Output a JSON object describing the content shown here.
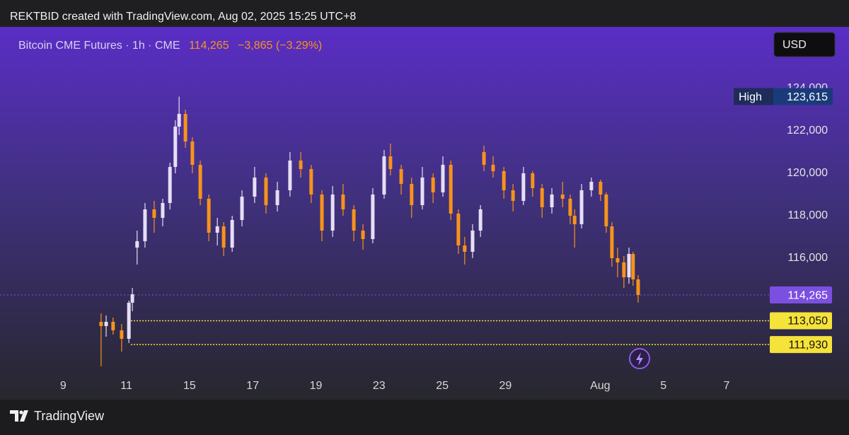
{
  "header": "REKTBID created with TradingView.com, Aug 02, 2025 15:25 UTC+8",
  "currency_button": "USD",
  "brand": "TradingView",
  "chart_data": {
    "type": "candlestick",
    "symbol_label": "Bitcoin CME Futures · 1h · CME",
    "last_label": "114,265",
    "change_label": "−3,865 (−3.29%)",
    "up_color": "#e6def5",
    "down_color": "#f7931a",
    "x": [
      1.2,
      1.36,
      1.58,
      1.85,
      2.08,
      2.19,
      2.34,
      2.59,
      2.88,
      3.15,
      3.38,
      3.55,
      3.67,
      3.87,
      4.09,
      4.34,
      4.61,
      4.88,
      5.08,
      5.35,
      5.66,
      6.06,
      6.42,
      6.78,
      7.18,
      7.52,
      7.85,
      8.19,
      8.53,
      8.86,
      9.2,
      9.49,
      9.8,
      10.16,
      10.36,
      10.7,
      11.03,
      11.37,
      11.71,
      12.02,
      12.27,
      12.51,
      12.71,
      12.96,
      13.21,
      13.32,
      13.61,
      13.95,
      14.24,
      14.57,
      14.86,
      15.16,
      15.47,
      15.81,
      16.05,
      16.19,
      16.41,
      16.72,
      17.01,
      17.19,
      17.37,
      17.55,
      17.75,
      17.91,
      18.04,
      18.2
    ],
    "open": [
      113000,
      112800,
      113000,
      112600,
      112200,
      113900,
      116500,
      116800,
      118300,
      117900,
      118600,
      120300,
      122200,
      122800,
      121500,
      120400,
      118800,
      117200,
      117500,
      116500,
      117800,
      118900,
      119800,
      118500,
      119200,
      120600,
      120200,
      119000,
      117300,
      119000,
      118300,
      117300,
      116900,
      119000,
      120800,
      120200,
      119500,
      118500,
      119800,
      119100,
      120400,
      118100,
      116600,
      116300,
      117300,
      121000,
      120400,
      120100,
      119200,
      118700,
      120000,
      119300,
      118400,
      119000,
      118800,
      118000,
      117600,
      119200,
      119600,
      119000,
      117500,
      116000,
      115800,
      115100,
      116200,
      115000
    ],
    "high": [
      113400,
      113300,
      113200,
      112900,
      114000,
      114600,
      117300,
      118600,
      118700,
      118800,
      120500,
      122500,
      123615,
      123000,
      121700,
      120600,
      119000,
      117900,
      117700,
      118000,
      119200,
      120300,
      120000,
      119600,
      121000,
      121000,
      120400,
      119200,
      119400,
      119500,
      118500,
      117600,
      119300,
      121100,
      121400,
      120400,
      119800,
      120300,
      120000,
      120800,
      120600,
      118300,
      117000,
      117600,
      118500,
      121300,
      120800,
      120300,
      119500,
      120300,
      120100,
      119500,
      119300,
      119600,
      119000,
      118300,
      119500,
      119800,
      119700,
      119100,
      117700,
      116500,
      116100,
      116500,
      116300,
      115200
    ],
    "low": [
      110900,
      112300,
      112400,
      111600,
      112000,
      113500,
      115700,
      116500,
      117200,
      117500,
      118300,
      120000,
      121800,
      121200,
      120000,
      118500,
      116800,
      116600,
      116100,
      116300,
      117500,
      118600,
      118100,
      118200,
      118900,
      119800,
      118600,
      116800,
      117000,
      118000,
      116800,
      116400,
      116700,
      118800,
      119900,
      119000,
      117900,
      118300,
      118600,
      118900,
      117800,
      116200,
      115700,
      116000,
      117000,
      120100,
      119800,
      118800,
      118200,
      118500,
      118900,
      117900,
      118100,
      118400,
      117600,
      116500,
      117400,
      118900,
      118700,
      117200,
      115600,
      115100,
      114600,
      114800,
      114700,
      113900
    ],
    "close": [
      112800,
      113000,
      112600,
      112200,
      113900,
      114300,
      116800,
      118300,
      117900,
      118600,
      120300,
      122200,
      122800,
      121500,
      120400,
      118800,
      117200,
      117500,
      116500,
      117800,
      118900,
      119800,
      118500,
      119200,
      120600,
      120200,
      119000,
      117300,
      119000,
      118300,
      117300,
      116900,
      119000,
      120800,
      120200,
      119500,
      118500,
      119800,
      119100,
      120400,
      118100,
      116600,
      116300,
      117300,
      118300,
      120400,
      120100,
      119200,
      118700,
      120000,
      119300,
      118400,
      119000,
      118800,
      118000,
      117600,
      119200,
      119600,
      119000,
      117500,
      116000,
      115800,
      115100,
      116200,
      115000,
      114265
    ],
    "xlim": [
      -2,
      22.3
    ],
    "xticks": [
      {
        "value": 0,
        "label": "9"
      },
      {
        "value": 2,
        "label": "11"
      },
      {
        "value": 4,
        "label": "15"
      },
      {
        "value": 6,
        "label": "17"
      },
      {
        "value": 8,
        "label": "19"
      },
      {
        "value": 10,
        "label": "23"
      },
      {
        "value": 12,
        "label": "25"
      },
      {
        "value": 14,
        "label": "29"
      },
      {
        "value": 17,
        "label": "Aug"
      },
      {
        "value": 19,
        "label": "5"
      },
      {
        "value": 21,
        "label": "7"
      }
    ],
    "ylim": [
      110500,
      126900
    ],
    "yticks": [
      {
        "value": 116000,
        "label": "116,000"
      },
      {
        "value": 118000,
        "label": "118,000"
      },
      {
        "value": 120000,
        "label": "120,000"
      },
      {
        "value": 122000,
        "label": "122,000"
      },
      {
        "value": 124000,
        "label": "124,000"
      }
    ],
    "high_marker": {
      "label": "High",
      "value": 123615,
      "value_label": "123,615"
    },
    "price_lines": [
      {
        "value": 114265,
        "label": "114,265",
        "color": "#7b4fe0"
      },
      {
        "value": 113050,
        "label": "113,050",
        "color": "#f5e23a"
      },
      {
        "value": 111930,
        "label": "111,930",
        "color": "#f5e23a"
      }
    ]
  }
}
